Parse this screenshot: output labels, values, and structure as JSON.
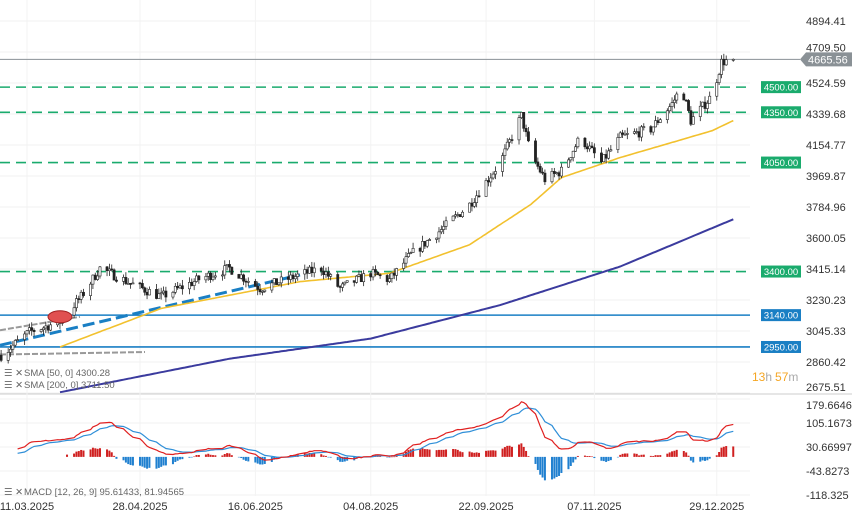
{
  "chart_data": {
    "type": "candlestick",
    "price_axis": {
      "ticks": [
        "4894.41",
        "4709.50",
        "4524.59",
        "4339.68",
        "4154.77",
        "3969.87",
        "3784.96",
        "3600.05",
        "3415.14",
        "3230.23",
        "3045.33",
        "2860.42",
        "2675.51"
      ],
      "range": [
        2675.51,
        4894.41
      ]
    },
    "macd_axis": {
      "ticks": [
        "179.6646",
        "105.1673",
        "30.66997",
        "-43.8273",
        "-118.325"
      ],
      "range": [
        -118.325,
        179.6646
      ]
    },
    "x_ticks": [
      "11.03.2025",
      "28.04.2025",
      "16.06.2025",
      "04.08.2025",
      "22.09.2025",
      "07.11.2025",
      "29.12.2025"
    ],
    "price_path": [
      [
        "2025-02-28",
        2900
      ],
      [
        "2025-03-12",
        3040
      ],
      [
        "2025-03-25",
        3100
      ],
      [
        "2025-04-03",
        3250
      ],
      [
        "2025-04-11",
        3420
      ],
      [
        "2025-04-24",
        3330
      ],
      [
        "2025-05-07",
        3250
      ],
      [
        "2025-05-24",
        3360
      ],
      [
        "2025-06-05",
        3420
      ],
      [
        "2025-06-18",
        3300
      ],
      [
        "2025-07-05",
        3380
      ],
      [
        "2025-07-14",
        3420
      ],
      [
        "2025-07-22",
        3300
      ],
      [
        "2025-08-04",
        3390
      ],
      [
        "2025-08-12",
        3350
      ],
      [
        "2025-08-21",
        3500
      ],
      [
        "2025-09-03",
        3650
      ],
      [
        "2025-09-15",
        3800
      ],
      [
        "2025-09-28",
        4050
      ],
      [
        "2025-10-07",
        4330
      ],
      [
        "2025-10-11",
        4100
      ],
      [
        "2025-10-17",
        3950
      ],
      [
        "2025-10-24",
        4000
      ],
      [
        "2025-11-01",
        4200
      ],
      [
        "2025-11-10",
        4050
      ],
      [
        "2025-11-18",
        4200
      ],
      [
        "2025-12-01",
        4250
      ],
      [
        "2025-12-10",
        4400
      ],
      [
        "2025-12-14",
        4500
      ],
      [
        "2025-12-18",
        4300
      ],
      [
        "2025-12-27",
        4450
      ],
      [
        "2025-12-31",
        4650
      ],
      [
        "2026-01-05",
        4665.56
      ]
    ],
    "sma50_path": [
      [
        "2025-03-25",
        2950
      ],
      [
        "2025-05-07",
        3180
      ],
      [
        "2025-07-05",
        3340
      ],
      [
        "2025-08-12",
        3390
      ],
      [
        "2025-09-15",
        3560
      ],
      [
        "2025-10-11",
        3800
      ],
      [
        "2025-10-24",
        3960
      ],
      [
        "2025-11-18",
        4080
      ],
      [
        "2025-12-10",
        4170
      ],
      [
        "2025-12-27",
        4240
      ],
      [
        "2026-01-05",
        4300.28
      ]
    ],
    "sma200_path": [
      [
        "2025-03-25",
        2680
      ],
      [
        "2025-06-05",
        2880
      ],
      [
        "2025-08-04",
        3000
      ],
      [
        "2025-09-28",
        3200
      ],
      [
        "2025-11-18",
        3430
      ],
      [
        "2026-01-05",
        3711.5
      ]
    ],
    "current_price": "4665.56",
    "levels": [
      {
        "label": "4500.00",
        "value": 4500,
        "style": "dashed",
        "color": "#1aab6d"
      },
      {
        "label": "4350.00",
        "value": 4350,
        "style": "dashed",
        "color": "#1aab6d"
      },
      {
        "label": "4050.00",
        "value": 4050,
        "style": "dashed",
        "color": "#1aab6d"
      },
      {
        "label": "3400.00",
        "value": 3400,
        "style": "dashed",
        "color": "#1aab6d"
      },
      {
        "label": "3140.00",
        "value": 3140,
        "style": "solid",
        "color": "#1a7fc4"
      },
      {
        "label": "2950.00",
        "value": 2950,
        "style": "solid",
        "color": "#1a7fc4"
      }
    ],
    "legend": {
      "sma50": "SMA [50, 0] 4300.28",
      "sma200": "SMA [200, 0] 3711.50",
      "macd": "MACD [12, 26, 9] 95.61433,  81.94565"
    },
    "countdown": {
      "h": "13",
      "h_unit": "h",
      "m": "57",
      "m_unit": "m"
    },
    "colors": {
      "up": "#ffffff",
      "down": "#222222",
      "sma50": "#f2c12e",
      "sma200": "#3b3b9e",
      "macd": "#e02020",
      "signal": "#2f8fd8",
      "hist_up": "#d02020",
      "hist_down": "#2080d0",
      "trend": "#1a7fc4"
    }
  }
}
